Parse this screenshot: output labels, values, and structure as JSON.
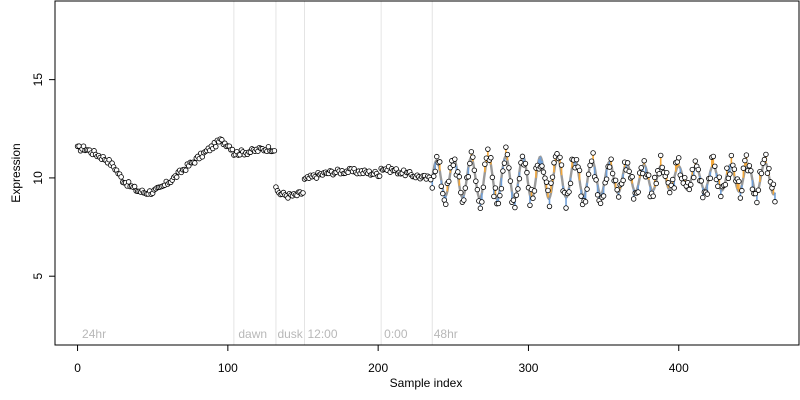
{
  "chart_data": {
    "type": "scatter",
    "title": "",
    "xlabel": "Sample index",
    "ylabel": "Expression",
    "xlim": [
      -15,
      480
    ],
    "ylim": [
      1.5,
      19
    ],
    "x_ticks": [
      0,
      100,
      200,
      300,
      400
    ],
    "y_ticks": [
      5,
      10,
      15
    ],
    "phase_boundaries": [
      104,
      132,
      151,
      202,
      236
    ],
    "phase_labels": [
      {
        "x": 3,
        "text": "24hr"
      },
      {
        "x": 107,
        "text": "dawn"
      },
      {
        "x": 133,
        "text": "dusk"
      },
      {
        "x": 153,
        "text": "12:00"
      },
      {
        "x": 204,
        "text": "0:00"
      },
      {
        "x": 237,
        "text": "48hr"
      }
    ],
    "segments": [
      {
        "phase": "24hr",
        "x_start": 0,
        "x_end": 103,
        "x": [
          0,
          5,
          10,
          15,
          20,
          25,
          30,
          35,
          40,
          45,
          50,
          55,
          60,
          65,
          70,
          75,
          80,
          85,
          90,
          95,
          100,
          103
        ],
        "y": [
          11.5,
          11.5,
          11.3,
          11.1,
          10.9,
          10.5,
          9.9,
          9.6,
          9.35,
          9.25,
          9.3,
          9.45,
          9.75,
          10.05,
          10.4,
          10.7,
          11.0,
          11.3,
          11.6,
          11.9,
          11.7,
          11.5
        ]
      },
      {
        "phase": "dawn",
        "x_start": 104,
        "x_end": 131,
        "x": [
          104,
          110,
          116,
          122,
          128,
          131
        ],
        "y": [
          11.25,
          11.3,
          11.35,
          11.45,
          11.5,
          11.45
        ]
      },
      {
        "phase": "dusk",
        "x_start": 132,
        "x_end": 150,
        "x": [
          132,
          135,
          140,
          145,
          150
        ],
        "y": [
          9.4,
          9.2,
          9.1,
          9.1,
          9.25
        ]
      },
      {
        "phase": "12:00",
        "x_start": 151,
        "x_end": 201,
        "x": [
          151,
          160,
          170,
          180,
          190,
          201
        ],
        "y": [
          9.9,
          10.15,
          10.3,
          10.35,
          10.3,
          10.2
        ]
      },
      {
        "phase": "0:00",
        "x_start": 202,
        "x_end": 235,
        "x": [
          202,
          210,
          220,
          228,
          235
        ],
        "y": [
          10.5,
          10.4,
          10.2,
          10.05,
          9.95
        ]
      },
      {
        "phase": "48hr",
        "x_start": 236,
        "x_end": 464,
        "oscillation": {
          "baseline": 10.0,
          "amplitude": 1.0,
          "period": 11.5
        }
      }
    ],
    "points": {
      "count": 464,
      "fill_color": "#ffffff",
      "stroke_color": "#000000",
      "above_trend_color": "#f4a83a",
      "below_trend_color": "#6f9fd8"
    },
    "colors": {
      "trend": "#9a9a9a",
      "boundary": "#e4e4e4",
      "axis": "#000000",
      "phase_label": "#b8b8b8"
    }
  }
}
